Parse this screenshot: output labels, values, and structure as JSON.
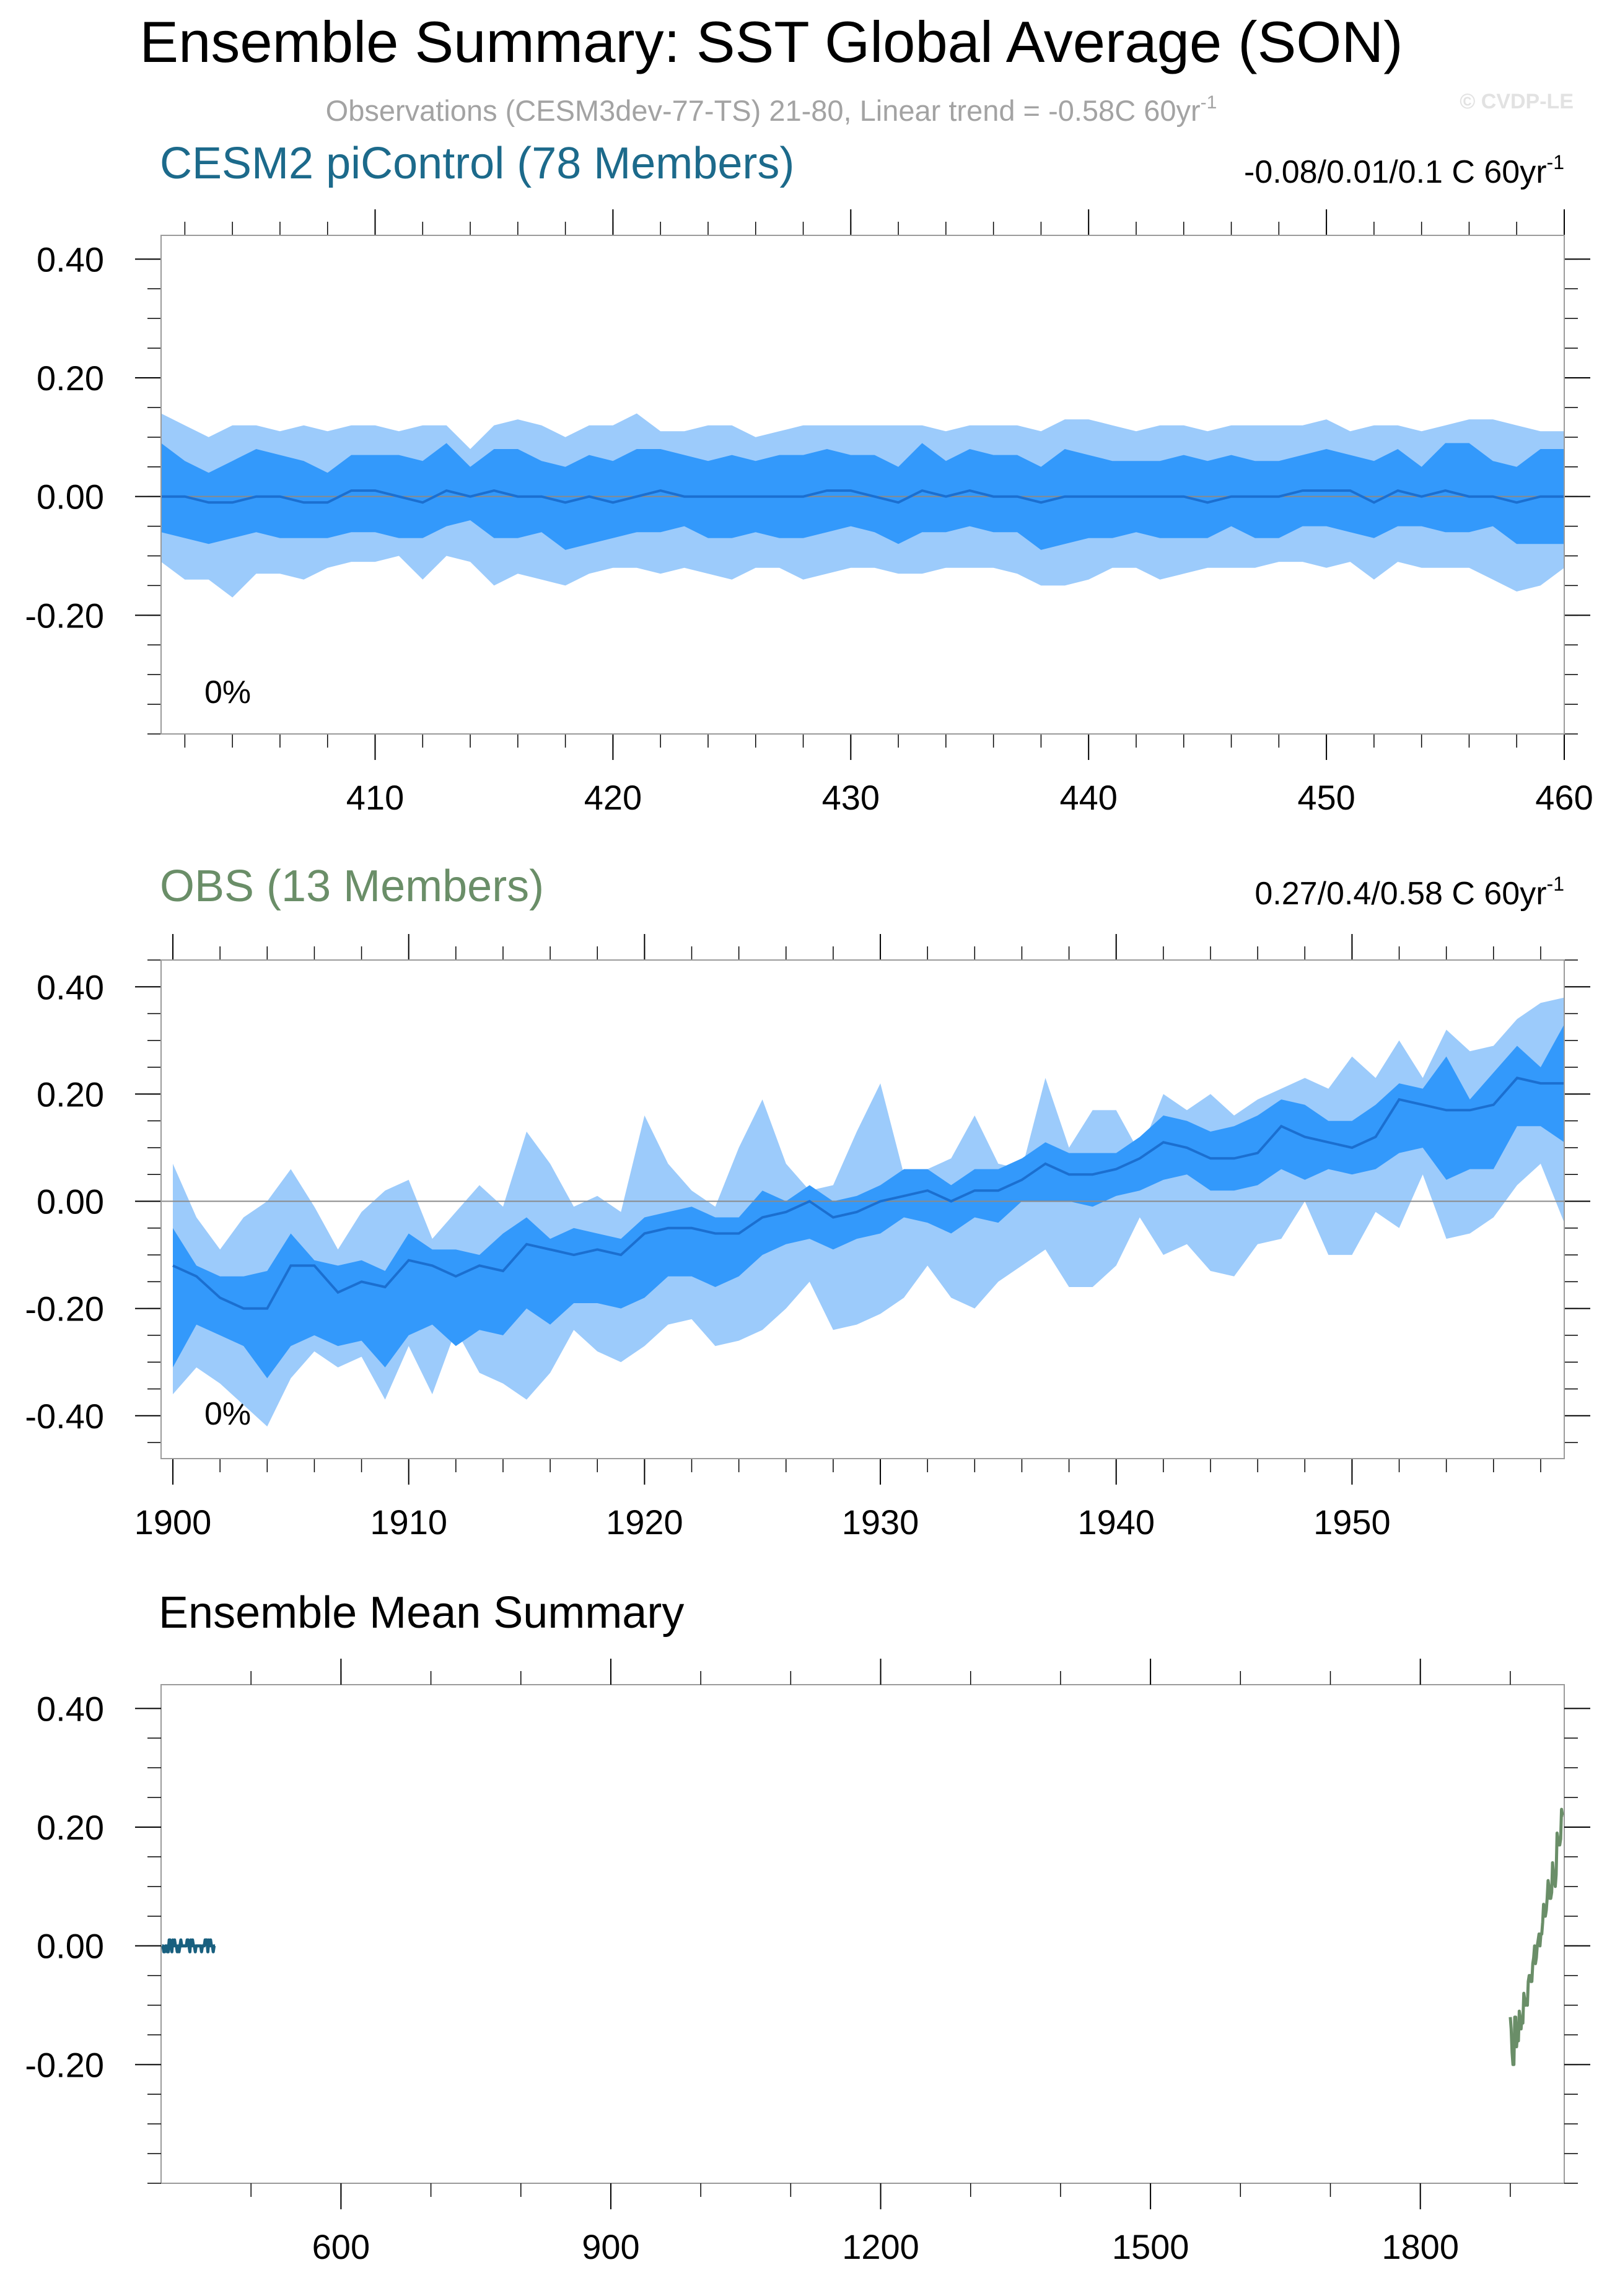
{
  "title": "Ensemble Summary: SST Global Average (SON)",
  "subtitle": "Observations (CESM3dev-77-TS) 21-80, Linear trend = -0.58C 60yr",
  "subtitle_sup": "-1",
  "watermark": "© CVDP-LE",
  "colors": {
    "band_outer": "#9ccbfb",
    "band_inner": "#3399fb",
    "mean_line": "#1b6fd0",
    "cesm_title": "#1c6a8b",
    "obs_title": "#6a8e68",
    "cesm_line": "#19607f",
    "obs_line": "#6a8e68",
    "axis": "#000000",
    "zero_line": "#8a8a8a"
  },
  "chart_data": [
    {
      "type": "area",
      "name": "CESM2 piControl (78 Members)",
      "panel_title": "CESM2 piControl (78 Members)",
      "trend_text": "-0.08/0.01/0.1 C 60yr",
      "trend_sup": "-1",
      "percent_label": "0%",
      "ylim": [
        -0.4,
        0.44
      ],
      "xlim": [
        401,
        460
      ],
      "y_ticks": [
        0.4,
        0.2,
        0.0,
        -0.2
      ],
      "y_tick_labels": [
        "0.40",
        "0.20",
        "0.00",
        "-0.20"
      ],
      "x_ticks": [
        410,
        420,
        430,
        440,
        450,
        460
      ],
      "x_tick_labels": [
        "410",
        "420",
        "430",
        "440",
        "450",
        "460"
      ],
      "x": [
        401,
        402,
        403,
        404,
        405,
        406,
        407,
        408,
        409,
        410,
        411,
        412,
        413,
        414,
        415,
        416,
        417,
        418,
        419,
        420,
        421,
        422,
        423,
        424,
        425,
        426,
        427,
        428,
        429,
        430,
        431,
        432,
        433,
        434,
        435,
        436,
        437,
        438,
        439,
        440,
        441,
        442,
        443,
        444,
        445,
        446,
        447,
        448,
        449,
        450,
        451,
        452,
        453,
        454,
        455,
        456,
        457,
        458,
        459,
        460
      ],
      "mean": [
        0.0,
        0.0,
        -0.01,
        -0.01,
        0.0,
        0.0,
        -0.01,
        -0.01,
        0.01,
        0.01,
        0.0,
        -0.01,
        0.01,
        0.0,
        0.01,
        0.0,
        0.0,
        -0.01,
        0.0,
        -0.01,
        0.0,
        0.01,
        0.0,
        0.0,
        0.0,
        0.0,
        0.0,
        0.0,
        0.01,
        0.01,
        0.0,
        -0.01,
        0.01,
        0.0,
        0.01,
        0.0,
        0.0,
        -0.01,
        0.0,
        0.0,
        0.0,
        0.0,
        0.0,
        0.0,
        -0.01,
        0.0,
        0.0,
        0.0,
        0.01,
        0.01,
        0.01,
        -0.01,
        0.01,
        0.0,
        0.01,
        0.0,
        0.0,
        -0.01,
        0.0,
        0.0
      ],
      "inner_upper": [
        0.09,
        0.06,
        0.04,
        0.06,
        0.08,
        0.07,
        0.06,
        0.04,
        0.07,
        0.07,
        0.07,
        0.06,
        0.09,
        0.05,
        0.08,
        0.08,
        0.06,
        0.05,
        0.07,
        0.06,
        0.08,
        0.08,
        0.07,
        0.06,
        0.07,
        0.06,
        0.07,
        0.07,
        0.08,
        0.07,
        0.07,
        0.05,
        0.09,
        0.06,
        0.08,
        0.07,
        0.07,
        0.05,
        0.08,
        0.07,
        0.06,
        0.06,
        0.06,
        0.07,
        0.06,
        0.07,
        0.06,
        0.06,
        0.07,
        0.08,
        0.07,
        0.06,
        0.08,
        0.05,
        0.09,
        0.09,
        0.06,
        0.05,
        0.08,
        0.08
      ],
      "inner_lower": [
        -0.06,
        -0.07,
        -0.08,
        -0.07,
        -0.06,
        -0.07,
        -0.07,
        -0.07,
        -0.06,
        -0.06,
        -0.07,
        -0.07,
        -0.05,
        -0.04,
        -0.07,
        -0.07,
        -0.06,
        -0.09,
        -0.08,
        -0.07,
        -0.06,
        -0.06,
        -0.05,
        -0.07,
        -0.07,
        -0.06,
        -0.07,
        -0.07,
        -0.06,
        -0.05,
        -0.06,
        -0.08,
        -0.06,
        -0.06,
        -0.05,
        -0.06,
        -0.06,
        -0.09,
        -0.08,
        -0.07,
        -0.07,
        -0.06,
        -0.07,
        -0.07,
        -0.07,
        -0.05,
        -0.07,
        -0.07,
        -0.05,
        -0.05,
        -0.06,
        -0.07,
        -0.05,
        -0.05,
        -0.06,
        -0.06,
        -0.05,
        -0.08,
        -0.08,
        -0.08
      ],
      "outer_upper": [
        0.14,
        0.12,
        0.1,
        0.12,
        0.12,
        0.11,
        0.12,
        0.11,
        0.12,
        0.12,
        0.11,
        0.12,
        0.12,
        0.08,
        0.12,
        0.13,
        0.12,
        0.1,
        0.12,
        0.12,
        0.14,
        0.11,
        0.11,
        0.12,
        0.12,
        0.1,
        0.11,
        0.12,
        0.12,
        0.12,
        0.12,
        0.12,
        0.12,
        0.11,
        0.12,
        0.12,
        0.12,
        0.11,
        0.13,
        0.13,
        0.12,
        0.11,
        0.12,
        0.12,
        0.11,
        0.12,
        0.12,
        0.12,
        0.12,
        0.13,
        0.11,
        0.12,
        0.12,
        0.11,
        0.12,
        0.13,
        0.13,
        0.12,
        0.11,
        0.11
      ],
      "outer_lower": [
        -0.11,
        -0.14,
        -0.14,
        -0.17,
        -0.13,
        -0.13,
        -0.14,
        -0.12,
        -0.11,
        -0.11,
        -0.1,
        -0.14,
        -0.1,
        -0.11,
        -0.15,
        -0.13,
        -0.14,
        -0.15,
        -0.13,
        -0.12,
        -0.12,
        -0.13,
        -0.12,
        -0.13,
        -0.14,
        -0.12,
        -0.12,
        -0.14,
        -0.13,
        -0.12,
        -0.12,
        -0.13,
        -0.13,
        -0.12,
        -0.12,
        -0.12,
        -0.13,
        -0.15,
        -0.15,
        -0.14,
        -0.12,
        -0.12,
        -0.14,
        -0.13,
        -0.12,
        -0.12,
        -0.12,
        -0.11,
        -0.11,
        -0.12,
        -0.11,
        -0.14,
        -0.11,
        -0.12,
        -0.12,
        -0.12,
        -0.14,
        -0.16,
        -0.15,
        -0.12
      ]
    },
    {
      "type": "area",
      "name": "OBS (13 Members)",
      "panel_title": "OBS (13 Members)",
      "trend_text": "0.27/0.4/0.58 C 60yr",
      "trend_sup": "-1",
      "percent_label": "0%",
      "ylim": [
        -0.48,
        0.45
      ],
      "xlim": [
        1899.5,
        1959
      ],
      "y_ticks": [
        0.4,
        0.2,
        0.0,
        -0.2,
        -0.4
      ],
      "y_tick_labels": [
        "0.40",
        "0.20",
        "0.00",
        "-0.20",
        "-0.40"
      ],
      "x_ticks": [
        1900,
        1910,
        1920,
        1930,
        1940,
        1950
      ],
      "x_tick_labels": [
        "1900",
        "1910",
        "1920",
        "1930",
        "1940",
        "1950"
      ],
      "x": [
        1900,
        1901,
        1902,
        1903,
        1904,
        1905,
        1906,
        1907,
        1908,
        1909,
        1910,
        1911,
        1912,
        1913,
        1914,
        1915,
        1916,
        1917,
        1918,
        1919,
        1920,
        1921,
        1922,
        1923,
        1924,
        1925,
        1926,
        1927,
        1928,
        1929,
        1930,
        1931,
        1932,
        1933,
        1934,
        1935,
        1936,
        1937,
        1938,
        1939,
        1940,
        1941,
        1942,
        1943,
        1944,
        1945,
        1946,
        1947,
        1948,
        1949,
        1950,
        1951,
        1952,
        1953,
        1954,
        1955,
        1956,
        1957,
        1958,
        1959
      ],
      "mean": [
        -0.12,
        -0.14,
        -0.18,
        -0.2,
        -0.2,
        -0.12,
        -0.12,
        -0.17,
        -0.15,
        -0.16,
        -0.11,
        -0.12,
        -0.14,
        -0.12,
        -0.13,
        -0.08,
        -0.09,
        -0.1,
        -0.09,
        -0.1,
        -0.06,
        -0.05,
        -0.05,
        -0.06,
        -0.06,
        -0.03,
        -0.02,
        0.0,
        -0.03,
        -0.02,
        0.0,
        0.01,
        0.02,
        0.0,
        0.02,
        0.02,
        0.04,
        0.07,
        0.05,
        0.05,
        0.06,
        0.08,
        0.11,
        0.1,
        0.08,
        0.08,
        0.09,
        0.14,
        0.12,
        0.11,
        0.1,
        0.12,
        0.19,
        0.18,
        0.17,
        0.17,
        0.18,
        0.23,
        0.22,
        0.22
      ],
      "inner_upper": [
        -0.05,
        -0.12,
        -0.14,
        -0.14,
        -0.13,
        -0.06,
        -0.11,
        -0.12,
        -0.11,
        -0.13,
        -0.06,
        -0.09,
        -0.09,
        -0.1,
        -0.06,
        -0.03,
        -0.07,
        -0.05,
        -0.06,
        -0.07,
        -0.03,
        -0.02,
        -0.01,
        -0.03,
        -0.03,
        0.02,
        0.0,
        0.03,
        0.0,
        0.01,
        0.03,
        0.06,
        0.06,
        0.03,
        0.06,
        0.06,
        0.08,
        0.11,
        0.09,
        0.09,
        0.09,
        0.12,
        0.16,
        0.15,
        0.13,
        0.14,
        0.16,
        0.19,
        0.18,
        0.15,
        0.15,
        0.18,
        0.22,
        0.21,
        0.27,
        0.19,
        0.24,
        0.29,
        0.25,
        0.33
      ],
      "inner_lower": [
        -0.31,
        -0.23,
        -0.25,
        -0.27,
        -0.33,
        -0.27,
        -0.25,
        -0.27,
        -0.26,
        -0.31,
        -0.25,
        -0.23,
        -0.27,
        -0.24,
        -0.25,
        -0.2,
        -0.23,
        -0.19,
        -0.19,
        -0.2,
        -0.18,
        -0.14,
        -0.14,
        -0.16,
        -0.14,
        -0.1,
        -0.08,
        -0.07,
        -0.09,
        -0.07,
        -0.06,
        -0.03,
        -0.04,
        -0.06,
        -0.03,
        -0.04,
        0.0,
        0.0,
        0.0,
        -0.01,
        0.01,
        0.02,
        0.04,
        0.05,
        0.02,
        0.02,
        0.03,
        0.06,
        0.04,
        0.06,
        0.05,
        0.06,
        0.09,
        0.1,
        0.04,
        0.06,
        0.06,
        0.14,
        0.14,
        0.11
      ],
      "outer_upper": [
        0.07,
        -0.03,
        -0.09,
        -0.03,
        0.0,
        0.06,
        -0.01,
        -0.09,
        -0.02,
        0.02,
        0.04,
        -0.07,
        -0.02,
        0.03,
        -0.01,
        0.13,
        0.07,
        -0.01,
        0.01,
        -0.02,
        0.16,
        0.07,
        0.02,
        -0.01,
        0.1,
        0.19,
        0.07,
        0.02,
        0.03,
        0.13,
        0.22,
        0.05,
        0.06,
        0.08,
        0.16,
        0.07,
        0.06,
        0.23,
        0.1,
        0.17,
        0.17,
        0.09,
        0.2,
        0.17,
        0.2,
        0.16,
        0.19,
        0.21,
        0.23,
        0.21,
        0.27,
        0.23,
        0.3,
        0.23,
        0.32,
        0.28,
        0.29,
        0.34,
        0.37,
        0.38
      ],
      "outer_lower": [
        -0.36,
        -0.31,
        -0.34,
        -0.38,
        -0.42,
        -0.33,
        -0.28,
        -0.31,
        -0.29,
        -0.37,
        -0.27,
        -0.36,
        -0.24,
        -0.32,
        -0.34,
        -0.37,
        -0.32,
        -0.24,
        -0.28,
        -0.3,
        -0.27,
        -0.23,
        -0.22,
        -0.27,
        -0.26,
        -0.24,
        -0.2,
        -0.15,
        -0.24,
        -0.23,
        -0.21,
        -0.18,
        -0.12,
        -0.18,
        -0.2,
        -0.15,
        -0.12,
        -0.09,
        -0.16,
        -0.16,
        -0.12,
        -0.03,
        -0.1,
        -0.08,
        -0.13,
        -0.14,
        -0.08,
        -0.07,
        0.0,
        -0.1,
        -0.1,
        -0.02,
        -0.05,
        0.05,
        -0.07,
        -0.06,
        -0.03,
        0.03,
        0.07,
        -0.04
      ]
    },
    {
      "type": "line",
      "panel_title": "Ensemble Mean Summary",
      "ylim": [
        -0.4,
        0.44
      ],
      "xlim": [
        400,
        1960
      ],
      "y_ticks": [
        0.4,
        0.2,
        0.0,
        -0.2
      ],
      "y_tick_labels": [
        "0.40",
        "0.20",
        "0.00",
        "-0.20"
      ],
      "x_ticks": [
        600,
        900,
        1200,
        1500,
        1800
      ],
      "x_tick_labels": [
        "600",
        "900",
        "1200",
        "1500",
        "1800"
      ],
      "series": [
        {
          "color_key": "cesm_line",
          "x": [
            401,
            402,
            403,
            404,
            405,
            406,
            407,
            408,
            409,
            410,
            411,
            412,
            413,
            414,
            415,
            416,
            417,
            418,
            419,
            420,
            421,
            422,
            423,
            424,
            425,
            426,
            427,
            428,
            429,
            430,
            431,
            432,
            433,
            434,
            435,
            436,
            437,
            438,
            439,
            440,
            441,
            442,
            443,
            444,
            445,
            446,
            447,
            448,
            449,
            450,
            451,
            452,
            453,
            454,
            455,
            456,
            457,
            458,
            459,
            460
          ],
          "values": [
            0.0,
            0.0,
            -0.01,
            -0.01,
            0.0,
            0.0,
            -0.01,
            -0.01,
            0.01,
            0.01,
            0.0,
            -0.01,
            0.01,
            0.0,
            0.01,
            0.0,
            0.0,
            -0.01,
            0.0,
            -0.01,
            0.0,
            0.01,
            0.0,
            0.0,
            0.0,
            0.0,
            0.0,
            0.0,
            0.01,
            0.01,
            0.0,
            -0.01,
            0.01,
            0.0,
            0.01,
            0.0,
            0.0,
            -0.01,
            0.0,
            0.0,
            0.0,
            0.0,
            0.0,
            0.0,
            -0.01,
            0.0,
            0.0,
            0.0,
            0.01,
            0.01,
            0.01,
            -0.01,
            0.01,
            0.0,
            0.01,
            0.0,
            0.0,
            -0.01,
            0.0,
            0.0
          ]
        },
        {
          "color_key": "obs_line",
          "x": [
            1900,
            1901,
            1902,
            1903,
            1904,
            1905,
            1906,
            1907,
            1908,
            1909,
            1910,
            1911,
            1912,
            1913,
            1914,
            1915,
            1916,
            1917,
            1918,
            1919,
            1920,
            1921,
            1922,
            1923,
            1924,
            1925,
            1926,
            1927,
            1928,
            1929,
            1930,
            1931,
            1932,
            1933,
            1934,
            1935,
            1936,
            1937,
            1938,
            1939,
            1940,
            1941,
            1942,
            1943,
            1944,
            1945,
            1946,
            1947,
            1948,
            1949,
            1950,
            1951,
            1952,
            1953,
            1954,
            1955,
            1956,
            1957,
            1958,
            1959
          ],
          "values": [
            -0.12,
            -0.14,
            -0.18,
            -0.2,
            -0.2,
            -0.12,
            -0.12,
            -0.17,
            -0.15,
            -0.16,
            -0.11,
            -0.12,
            -0.14,
            -0.12,
            -0.13,
            -0.08,
            -0.09,
            -0.1,
            -0.09,
            -0.1,
            -0.06,
            -0.05,
            -0.05,
            -0.06,
            -0.06,
            -0.03,
            -0.02,
            0.0,
            -0.03,
            -0.02,
            0.0,
            0.01,
            0.02,
            0.0,
            0.02,
            0.02,
            0.04,
            0.07,
            0.05,
            0.05,
            0.06,
            0.08,
            0.11,
            0.1,
            0.08,
            0.08,
            0.09,
            0.14,
            0.12,
            0.11,
            0.1,
            0.12,
            0.19,
            0.18,
            0.17,
            0.17,
            0.18,
            0.23,
            0.22,
            0.22
          ]
        }
      ]
    }
  ]
}
